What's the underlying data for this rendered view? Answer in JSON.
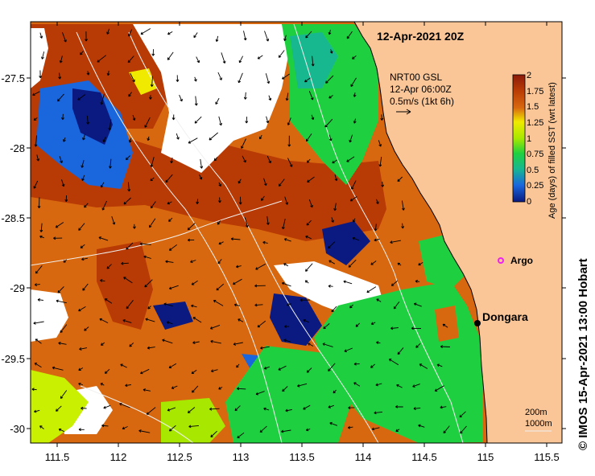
{
  "title": "12-Apr-2021 20Z",
  "credit": "© IMOS 15-Apr-2021 13:00 Hobart",
  "current_source": {
    "line1": "NRT00 GSL",
    "line2": "12-Apr 06:00Z",
    "line3": "0.5m/s (1kt 6h)"
  },
  "colorbar": {
    "label": "Age (days) of filled SST (wrt latest)",
    "ticks": [
      "2",
      "1.75",
      "1.5",
      "1.25",
      "1",
      "0.75",
      "0.5",
      "0.25",
      "0"
    ],
    "colors": [
      "#8b1a0a",
      "#b83a05",
      "#d8680f",
      "#f0ea00",
      "#a8e800",
      "#1ed040",
      "#17b890",
      "#1a66dd",
      "#0a1a80"
    ]
  },
  "places": {
    "dongara": "Dongara",
    "argo": "Argo"
  },
  "isobaths": {
    "line1": "200m",
    "line2": "1000m"
  },
  "axes": {
    "lon_ticks": [
      "111.5",
      "112",
      "112.5",
      "113",
      "113.5",
      "114",
      "114.5",
      "115",
      "115.5"
    ],
    "lat_ticks": [
      "-27.5",
      "-28",
      "-28.5",
      "-29",
      "-29.5",
      "-30"
    ]
  },
  "colors": {
    "land": "#fbc697",
    "argo_marker": "#ee22ee"
  }
}
